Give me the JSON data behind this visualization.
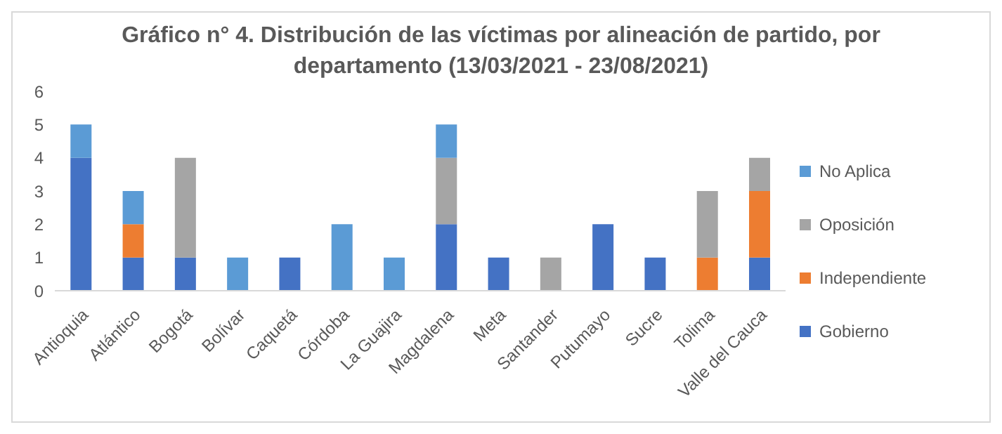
{
  "chart_data": {
    "type": "bar",
    "title": "Gráfico n° 4. Distribución de las víctimas por alineación de partido, por departamento (13/03/2021 - 23/08/2021)",
    "categories": [
      "Antioquia",
      "Atlántico",
      "Bogotá",
      "Bolívar",
      "Caquetá",
      "Córdoba",
      "La Guajira",
      "Magdalena",
      "Meta",
      "Santander",
      "Putumayo",
      "Sucre",
      "Tolima",
      "Valle del Cauca"
    ],
    "stacked": true,
    "series": [
      {
        "name": "Gobierno",
        "color": "#4472c4",
        "values": [
          4,
          1,
          1,
          0,
          1,
          0,
          0,
          2,
          1,
          0,
          2,
          1,
          0,
          1
        ]
      },
      {
        "name": "Independiente",
        "color": "#ed7d31",
        "values": [
          0,
          1,
          0,
          0,
          0,
          0,
          0,
          0,
          0,
          0,
          0,
          0,
          1,
          2
        ]
      },
      {
        "name": "Oposición",
        "color": "#a5a5a5",
        "values": [
          0,
          0,
          3,
          0,
          0,
          0,
          0,
          2,
          0,
          1,
          0,
          0,
          2,
          1
        ]
      },
      {
        "name": "No Aplica",
        "color": "#5b9bd5",
        "values": [
          1,
          1,
          0,
          1,
          0,
          2,
          1,
          1,
          0,
          0,
          0,
          0,
          0,
          0
        ]
      }
    ],
    "ylim": [
      0,
      6
    ],
    "yticks": [
      0,
      1,
      2,
      3,
      4,
      5,
      6
    ],
    "grid": false,
    "legend": "right"
  }
}
